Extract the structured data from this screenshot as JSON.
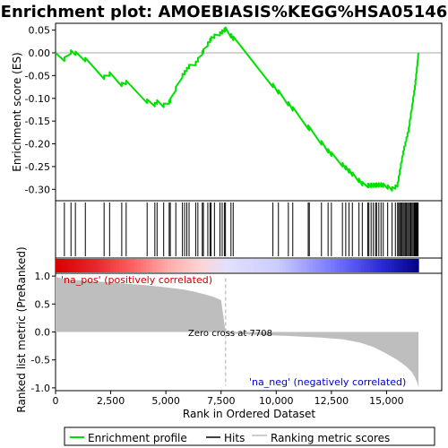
{
  "chart_data": {
    "type": "line",
    "title": "Enrichment plot: AMOEBIASIS%KEGG%HSA05146",
    "colors": {
      "profile": "#00e000",
      "hits": "#000000",
      "ranking": "#bebebe",
      "pos_label": "#cc0000",
      "neg_label": "#0000cc"
    },
    "x_axis": {
      "label": "Rank in Ordered Dataset",
      "range": [
        0,
        17500
      ],
      "ticks": [
        0,
        2500,
        5000,
        7500,
        10000,
        12500,
        15000
      ],
      "tick_labels": [
        "0",
        "2,500",
        "5,000",
        "7,500",
        "10,000",
        "12,500",
        "15,000"
      ],
      "n_genes": 16450
    },
    "es_panel": {
      "ylabel": "Enrichment score (ES)",
      "ylim": [
        -0.325,
        0.065
      ],
      "ticks": [
        0.05,
        0.0,
        -0.05,
        -0.1,
        -0.15,
        -0.2,
        -0.25,
        -0.3
      ],
      "tick_labels": [
        "0.05",
        "0.00",
        "-0.05",
        "-0.10",
        "-0.15",
        "-0.20",
        "-0.25",
        "-0.30"
      ],
      "profile": [
        [
          0,
          0.0
        ],
        [
          150,
          -0.005
        ],
        [
          380,
          -0.015
        ],
        [
          560,
          -0.005
        ],
        [
          740,
          0.004
        ],
        [
          900,
          -0.005
        ],
        [
          1100,
          -0.012
        ],
        [
          1350,
          -0.015
        ],
        [
          1600,
          -0.028
        ],
        [
          1900,
          -0.042
        ],
        [
          2150,
          -0.055
        ],
        [
          2300,
          -0.05
        ],
        [
          2500,
          -0.045
        ],
        [
          2800,
          -0.06
        ],
        [
          3050,
          -0.072
        ],
        [
          3200,
          -0.065
        ],
        [
          3500,
          -0.078
        ],
        [
          3800,
          -0.092
        ],
        [
          4050,
          -0.108
        ],
        [
          4250,
          -0.115
        ],
        [
          4420,
          -0.118
        ],
        [
          4600,
          -0.108
        ],
        [
          4800,
          -0.112
        ],
        [
          5000,
          -0.118
        ],
        [
          5150,
          -0.102
        ],
        [
          5300,
          -0.098
        ],
        [
          5450,
          -0.085
        ],
        [
          5600,
          -0.06
        ],
        [
          5750,
          -0.048
        ],
        [
          5900,
          -0.042
        ],
        [
          6050,
          -0.03
        ],
        [
          6200,
          -0.035
        ],
        [
          6350,
          -0.025
        ],
        [
          6500,
          -0.018
        ],
        [
          6650,
          0.0
        ],
        [
          6800,
          0.012
        ],
        [
          6950,
          0.022
        ],
        [
          7100,
          0.035
        ],
        [
          7250,
          0.042
        ],
        [
          7400,
          0.04
        ],
        [
          7550,
          0.046
        ],
        [
          7700,
          0.052
        ],
        [
          8000,
          0.046
        ],
        [
          8400,
          0.032
        ],
        [
          8800,
          0.018
        ],
        [
          9200,
          0.003
        ],
        [
          9600,
          -0.012
        ],
        [
          10000,
          -0.027
        ],
        [
          10400,
          -0.042
        ],
        [
          10800,
          -0.06
        ],
        [
          11200,
          -0.076
        ],
        [
          11600,
          -0.092
        ],
        [
          12000,
          -0.11
        ],
        [
          12400,
          -0.125
        ],
        [
          12700,
          -0.136
        ],
        [
          13000,
          -0.148
        ],
        [
          13300,
          -0.16
        ],
        [
          13600,
          -0.174
        ],
        [
          13900,
          -0.188
        ],
        [
          14150,
          -0.2
        ],
        [
          14400,
          -0.212
        ],
        [
          14600,
          -0.222
        ],
        [
          14800,
          -0.232
        ],
        [
          15000,
          -0.242
        ],
        [
          15150,
          -0.252
        ],
        [
          15300,
          -0.262
        ],
        [
          15450,
          -0.272
        ],
        [
          15550,
          -0.28
        ],
        [
          15650,
          -0.287
        ],
        [
          15750,
          -0.29
        ],
        [
          15850,
          -0.288
        ],
        [
          15950,
          -0.285
        ],
        [
          16050,
          -0.28
        ],
        [
          16150,
          -0.272
        ],
        [
          16250,
          -0.26
        ],
        [
          16330,
          -0.23
        ],
        [
          16380,
          -0.15
        ],
        [
          16420,
          -0.07
        ],
        [
          16450,
          0.0
        ]
      ],
      "smooth_points": [
        [
          0,
          0.0
        ],
        [
          380,
          -0.015
        ],
        [
          740,
          0.004
        ],
        [
          1350,
          -0.015
        ],
        [
          2150,
          -0.055
        ],
        [
          2500,
          -0.045
        ],
        [
          3050,
          -0.072
        ],
        [
          3200,
          -0.065
        ],
        [
          4420,
          -0.118
        ],
        [
          4600,
          -0.108
        ],
        [
          5000,
          -0.118
        ],
        [
          5300,
          -0.098
        ],
        [
          5600,
          -0.06
        ],
        [
          6050,
          -0.03
        ],
        [
          6200,
          -0.035
        ],
        [
          6650,
          0.0
        ],
        [
          7100,
          0.035
        ],
        [
          7400,
          0.04
        ],
        [
          7700,
          0.052
        ],
        [
          12400,
          -0.218
        ],
        [
          14000,
          -0.292
        ],
        [
          14800,
          -0.29
        ],
        [
          15300,
          -0.3
        ],
        [
          15500,
          -0.29
        ],
        [
          15750,
          -0.22
        ],
        [
          16000,
          -0.17
        ],
        [
          16300,
          -0.07
        ],
        [
          16450,
          0.0
        ]
      ],
      "line_width": 2
    },
    "hits": [
      400,
      700,
      900,
      1350,
      2200,
      2450,
      3000,
      3200,
      4150,
      4500,
      4600,
      4900,
      5150,
      5200,
      5450,
      5750,
      5850,
      5950,
      6050,
      6350,
      6450,
      6650,
      6700,
      6900,
      7000,
      7050,
      7200,
      7450,
      7550,
      7650,
      7700,
      7950,
      8050,
      9850,
      10100,
      10550,
      10750,
      11450,
      11500,
      12050,
      12350,
      12500,
      13000,
      13150,
      13300,
      13450,
      13750,
      13900,
      14150,
      14200,
      14300,
      14400,
      14500,
      14550,
      14650,
      14750,
      14850,
      15050,
      15250,
      15400,
      15500,
      15550,
      15600,
      15650,
      15700,
      15750,
      15800,
      15850,
      15900,
      15950,
      16000,
      16050,
      16100,
      16150,
      16200,
      16250,
      16280,
      16310,
      16340,
      16370,
      16400,
      16430
    ],
    "heatmap": {
      "colors": [
        [
          0,
          "#dc0000"
        ],
        [
          1750,
          "#e8262b"
        ],
        [
          3400,
          "#ff6060"
        ],
        [
          5000,
          "#ffaaaa"
        ],
        [
          6500,
          "#ffd4d4"
        ],
        [
          7700,
          "#e0e0ff"
        ],
        [
          10000,
          "#ccccff"
        ],
        [
          12500,
          "#7777ff"
        ],
        [
          14700,
          "#2a2ad8"
        ],
        [
          16450,
          "#000080"
        ]
      ]
    },
    "rank_panel": {
      "ylabel": "Ranked list metric (PreRanked)",
      "ylim": [
        -1.05,
        1.05
      ],
      "ticks": [
        1.0,
        0.5,
        0.0,
        -0.5,
        -1.0
      ],
      "tick_labels": [
        "1.0",
        "0.5",
        "0.0",
        "-0.5",
        "-1.0"
      ],
      "metric": [
        [
          0,
          1.0
        ],
        [
          80,
          0.98
        ],
        [
          250,
          0.96
        ],
        [
          600,
          0.94
        ],
        [
          1200,
          0.92
        ],
        [
          2000,
          0.9
        ],
        [
          3000,
          0.87
        ],
        [
          4000,
          0.84
        ],
        [
          5000,
          0.8
        ],
        [
          5800,
          0.76
        ],
        [
          6300,
          0.72
        ],
        [
          6800,
          0.67
        ],
        [
          7200,
          0.62
        ],
        [
          7500,
          0.57
        ],
        [
          7708,
          0.0
        ],
        [
          7708,
          -0.02
        ],
        [
          9000,
          -0.05
        ],
        [
          10500,
          -0.07
        ],
        [
          12000,
          -0.1
        ],
        [
          13000,
          -0.13
        ],
        [
          13800,
          -0.19
        ],
        [
          14400,
          -0.27
        ],
        [
          15000,
          -0.39
        ],
        [
          15500,
          -0.5
        ],
        [
          15900,
          -0.62
        ],
        [
          16150,
          -0.72
        ],
        [
          16300,
          -0.82
        ],
        [
          16400,
          -0.92
        ],
        [
          16450,
          -1.0
        ]
      ],
      "zero_cross_label": "Zero cross at 7708",
      "zero_cross_rank": 7708,
      "pos_label": "'na_pos' (positively correlated)",
      "neg_label": "'na_neg' (negatively correlated)"
    },
    "legend": {
      "placement": "bottom",
      "entries": [
        {
          "label": "Enrichment profile",
          "color": "#00e000",
          "kind": "line"
        },
        {
          "label": "Hits",
          "color": "#000000",
          "kind": "line"
        },
        {
          "label": "Ranking metric scores",
          "color": "#bebebe",
          "kind": "line"
        }
      ]
    }
  }
}
